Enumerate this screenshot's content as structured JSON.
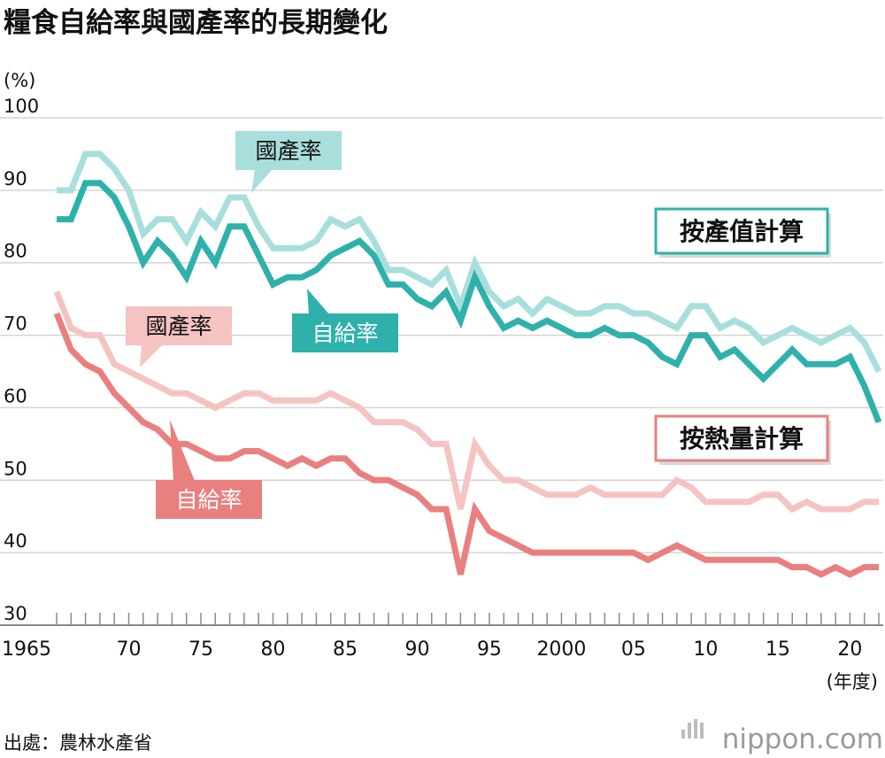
{
  "chart_data": {
    "type": "line",
    "title": "糧食自給率與國產率的長期變化",
    "ylabel": "(%)",
    "xlabel": "(年度)",
    "ylim": [
      30,
      100
    ],
    "yticks": [
      30,
      40,
      50,
      60,
      70,
      80,
      90,
      100
    ],
    "xlim": [
      1965,
      2022
    ],
    "xticks": [
      {
        "year": 1965,
        "label": "1965"
      },
      {
        "year": 1970,
        "label": "70"
      },
      {
        "year": 1975,
        "label": "75"
      },
      {
        "year": 1980,
        "label": "80"
      },
      {
        "year": 1985,
        "label": "85"
      },
      {
        "year": 1990,
        "label": "90"
      },
      {
        "year": 1995,
        "label": "95"
      },
      {
        "year": 2000,
        "label": "2000"
      },
      {
        "year": 2005,
        "label": "05"
      },
      {
        "year": 2010,
        "label": "10"
      },
      {
        "year": 2015,
        "label": "15"
      },
      {
        "year": 2020,
        "label": "20"
      }
    ],
    "grid": true,
    "x": [
      1965,
      1966,
      1967,
      1968,
      1969,
      1970,
      1971,
      1972,
      1973,
      1974,
      1975,
      1976,
      1977,
      1978,
      1979,
      1980,
      1981,
      1982,
      1983,
      1984,
      1985,
      1986,
      1987,
      1988,
      1989,
      1990,
      1991,
      1992,
      1993,
      1994,
      1995,
      1996,
      1997,
      1998,
      1999,
      2000,
      2001,
      2002,
      2003,
      2004,
      2005,
      2006,
      2007,
      2008,
      2009,
      2010,
      2011,
      2012,
      2013,
      2014,
      2015,
      2016,
      2017,
      2018,
      2019,
      2020,
      2021,
      2022
    ],
    "series": [
      {
        "name": "國產率",
        "group": "按產值計算",
        "color": "#a8dfdd",
        "values": [
          90,
          90,
          95,
          95,
          93,
          90,
          84,
          86,
          86,
          83,
          87,
          85,
          89,
          89,
          85,
          82,
          82,
          82,
          83,
          86,
          85,
          86,
          83,
          79,
          79,
          78,
          77,
          79,
          74,
          80,
          76,
          74,
          75,
          73,
          75,
          74,
          73,
          73,
          74,
          74,
          73,
          73,
          72,
          71,
          74,
          74,
          71,
          72,
          71,
          69,
          70,
          71,
          70,
          69,
          70,
          71,
          69,
          65
        ]
      },
      {
        "name": "自給率",
        "group": "按產值計算",
        "color": "#2fb1ab",
        "values": [
          86,
          86,
          91,
          91,
          89,
          85,
          80,
          83,
          81,
          78,
          83,
          80,
          85,
          85,
          81,
          77,
          78,
          78,
          79,
          81,
          82,
          83,
          81,
          77,
          77,
          75,
          74,
          76,
          72,
          78,
          74,
          71,
          72,
          71,
          72,
          71,
          70,
          70,
          71,
          70,
          70,
          69,
          67,
          66,
          70,
          70,
          67,
          68,
          66,
          64,
          66,
          68,
          66,
          66,
          66,
          67,
          63,
          58
        ]
      },
      {
        "name": "國產率",
        "group": "按熱量計算",
        "color": "#f5c4c2",
        "values": [
          76,
          71,
          70,
          70,
          66,
          65,
          64,
          63,
          62,
          62,
          61,
          60,
          61,
          62,
          62,
          61,
          61,
          61,
          61,
          62,
          61,
          60,
          58,
          58,
          58,
          57,
          55,
          55,
          46,
          55,
          52,
          50,
          50,
          49,
          48,
          48,
          48,
          49,
          48,
          48,
          48,
          48,
          48,
          50,
          49,
          47,
          47,
          47,
          47,
          48,
          48,
          46,
          47,
          46,
          46,
          46,
          47,
          47
        ]
      },
      {
        "name": "自給率",
        "group": "按熱量計算",
        "color": "#e9807f",
        "values": [
          73,
          68,
          66,
          65,
          62,
          60,
          58,
          57,
          55,
          55,
          54,
          53,
          53,
          54,
          54,
          53,
          52,
          53,
          52,
          53,
          53,
          51,
          50,
          50,
          49,
          48,
          46,
          46,
          37,
          46,
          43,
          42,
          41,
          40,
          40,
          40,
          40,
          40,
          40,
          40,
          40,
          39,
          40,
          41,
          40,
          39,
          39,
          39,
          39,
          39,
          39,
          38,
          38,
          37,
          38,
          37,
          38,
          38
        ]
      }
    ],
    "annotations": [
      {
        "text": "國產率",
        "series": 0
      },
      {
        "text": "自給率",
        "series": 1
      },
      {
        "text": "國產率",
        "series": 2
      },
      {
        "text": "自給率",
        "series": 3
      }
    ],
    "group_labels": [
      {
        "text": "按產值計算",
        "color": "#2fb1ab"
      },
      {
        "text": "按熱量計算",
        "color": "#e9807f"
      }
    ],
    "source": "出處：農林水產省",
    "brand": {
      "text": "nippon.com"
    }
  }
}
